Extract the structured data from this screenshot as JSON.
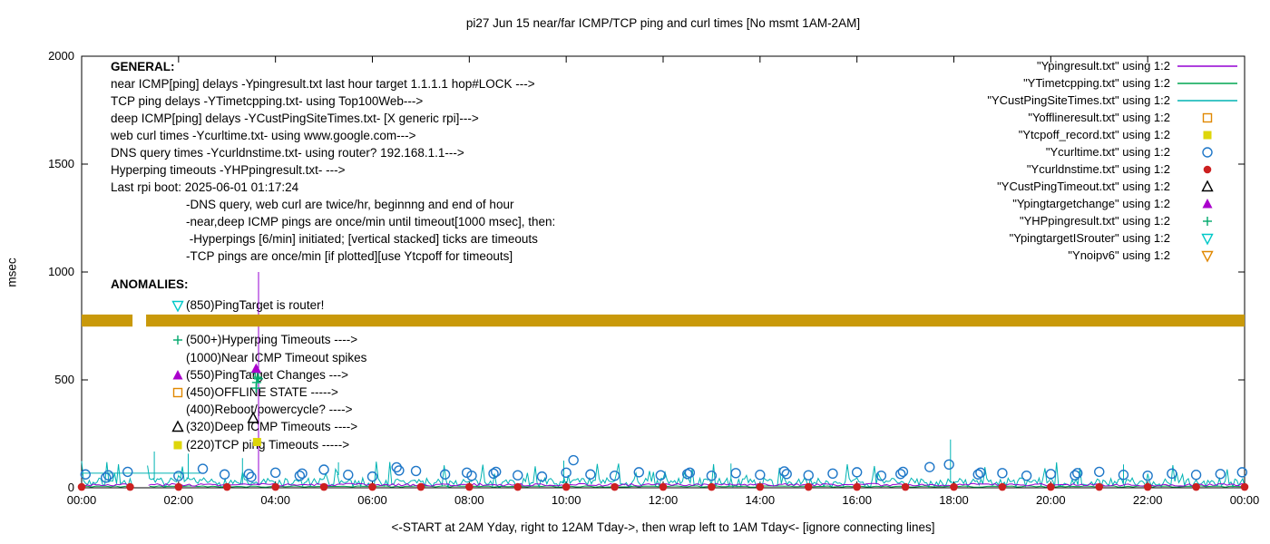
{
  "title": "pi27 Jun 15  near/far ICMP/TCP ping and curl times [No msmt 1AM-2AM]",
  "axes": {
    "ylabel": "msec",
    "xlabel": "<-START at 2AM Yday, right to 12AM Tday->, then wrap left to 1AM Tday<- [ignore connecting lines]"
  },
  "general": {
    "heading": "GENERAL:",
    "lines": [
      {
        "text": "near ICMP[ping] delays -Ypingresult.txt last hour target 1.1.1.1 hop#LOCK --->",
        "indent": 0
      },
      {
        "text": "TCP ping delays -YTimetcpping.txt- using Top100Web--->",
        "indent": 0
      },
      {
        "text": "deep ICMP[ping] delays -YCustPingSiteTimes.txt- [X generic rpi]--->",
        "indent": 0
      },
      {
        "text": "web curl times -Ycurltime.txt- using www.google.com--->",
        "indent": 0
      },
      {
        "text": "DNS query times -Ycurldnstime.txt- using router? 192.168.1.1--->",
        "indent": 0
      },
      {
        "text": "Hyperping timeouts -YHPpingresult.txt- --->",
        "indent": 0
      },
      {
        "text": "Last rpi boot: 2025-06-01 01:17:24",
        "indent": 0
      },
      {
        "text": "-DNS query, web curl are twice/hr, beginnng and end of hour",
        "indent": 1
      },
      {
        "text": "-near,deep ICMP pings are once/min until timeout[1000 msec], then:",
        "indent": 1
      },
      {
        "text": " -Hyperpings [6/min] initiated; [vertical stacked] ticks are timeouts",
        "indent": 1
      },
      {
        "text": "-TCP pings are once/min [if plotted][use Ytcpoff for timeouts]",
        "indent": 1
      }
    ]
  },
  "anomalies": {
    "heading": "ANOMALIES:",
    "items": [
      {
        "row": 0,
        "marker": "tri-down-open",
        "color": "#00c8c8",
        "text": "(850)PingTarget is router!"
      },
      {
        "row": 2,
        "marker": "plus",
        "color": "#00a86b",
        "text": "(500+)Hyperping Timeouts ---->"
      },
      {
        "row": 3,
        "marker": "",
        "color": "",
        "text": "(1000)Near ICMP Timeout spikes"
      },
      {
        "row": 4,
        "marker": "tri-up-filled",
        "color": "#aa00cc",
        "text": "(550)PingTarget Changes --->"
      },
      {
        "row": 5,
        "marker": "square-open",
        "color": "#e08800",
        "text": "(450)OFFLINE STATE ----->"
      },
      {
        "row": 6,
        "marker": "",
        "color": "",
        "text": "(400)Reboot/powercycle? ---->"
      },
      {
        "row": 7,
        "marker": "tri-up-open",
        "color": "#000000",
        "text": "(320)Deep ICMP Timeouts ---->"
      },
      {
        "row": 8,
        "marker": "square-filled",
        "color": "#ded60a",
        "text": "(220)TCP ping Timeouts ----->"
      }
    ]
  },
  "legend": {
    "items": [
      {
        "label": "\"Ypingresult.txt\" using 1:2",
        "glyph": "line",
        "color": "#9400d3"
      },
      {
        "label": "\"YTimetcpping.txt\" using 1:2",
        "glyph": "line",
        "color": "#00a550"
      },
      {
        "label": "\"YCustPingSiteTimes.txt\" using 1:2",
        "glyph": "line",
        "color": "#00b3b3"
      },
      {
        "label": "\"Yofflineresult.txt\" using 1:2",
        "glyph": "square-open",
        "color": "#e08800"
      },
      {
        "label": "\"Ytcpoff_record.txt\" using 1:2",
        "glyph": "square-filled",
        "color": "#ded60a"
      },
      {
        "label": "\"Ycurltime.txt\" using 1:2",
        "glyph": "circle-open",
        "color": "#1f77c8"
      },
      {
        "label": "\"Ycurldnstime.txt\" using 1:2",
        "glyph": "circle-filled",
        "color": "#cc2020"
      },
      {
        "label": "\"YCustPingTimeout.txt\" using 1:2",
        "glyph": "tri-up-open",
        "color": "#000000"
      },
      {
        "label": "\"Ypingtargetchange\" using 1:2",
        "glyph": "tri-up-filled",
        "color": "#aa00cc"
      },
      {
        "label": "\"YHPpingresult.txt\" using 1:2",
        "glyph": "plus",
        "color": "#00a86b"
      },
      {
        "label": "\"YpingtargetISrouter\" using 1:2",
        "glyph": "tri-down-open",
        "color": "#00c8c8"
      },
      {
        "label": "\"Ynoipv6\" using 1:2",
        "glyph": "tri-down-open",
        "color": "#e08800"
      }
    ]
  },
  "chart_data": {
    "type": "line",
    "title": "pi27 Jun 15  near/far ICMP/TCP ping and curl times [No msmt 1AM-2AM]",
    "xlabel": "<-START at 2AM Yday, right to 12AM Tday->, then wrap left to 1AM Tday<- [ignore connecting lines]",
    "ylabel": "msec",
    "ylim": [
      0,
      2000
    ],
    "xlim_hours": [
      0,
      24
    ],
    "grid": false,
    "legend_position": "top-right-outside-style",
    "x_ticks": [
      {
        "h": 0,
        "label": "00:00"
      },
      {
        "h": 2,
        "label": "02:00"
      },
      {
        "h": 4,
        "label": "04:00"
      },
      {
        "h": 6,
        "label": "06:00"
      },
      {
        "h": 8,
        "label": "08:00"
      },
      {
        "h": 10,
        "label": "10:00"
      },
      {
        "h": 12,
        "label": "12:00"
      },
      {
        "h": 14,
        "label": "14:00"
      },
      {
        "h": 16,
        "label": "16:00"
      },
      {
        "h": 18,
        "label": "18:00"
      },
      {
        "h": 20,
        "label": "20:00"
      },
      {
        "h": 22,
        "label": "22:00"
      },
      {
        "h": 24,
        "label": "00:00"
      }
    ],
    "y_ticks": [
      {
        "m": 0,
        "label": "0"
      },
      {
        "m": 500,
        "label": "500"
      },
      {
        "m": 1000,
        "label": "1000"
      },
      {
        "m": 1500,
        "label": "1500"
      },
      {
        "m": 2000,
        "label": "2000"
      }
    ],
    "no_measurement_gap_hours": [
      1.05,
      1.33
    ],
    "series": [
      {
        "id": "custpingsitetimes",
        "name": "YCustPingSiteTimes",
        "type": "noisy",
        "color": "#00b3b3",
        "step_h": 0.04,
        "base_min": 4,
        "base_max": 46,
        "spike_prob": 0.1,
        "spike_min": 55,
        "spike_max": 125,
        "seed": 7,
        "gap": [
          1.05,
          1.33
        ],
        "big_spikes": [
          [
            1.5,
            168
          ],
          [
            2.2,
            158
          ],
          [
            3.32,
            138
          ],
          [
            5.3,
            118
          ],
          [
            9.95,
            126
          ],
          [
            13.4,
            112
          ],
          [
            17.93,
            224
          ],
          [
            21.5,
            108
          ]
        ],
        "flat_segments": [
          [
            0,
            2.45,
            68
          ]
        ]
      },
      {
        "id": "timetcpping",
        "name": "YTimetcpping",
        "type": "noisy",
        "color": "#00a550",
        "step_h": 0.1,
        "base_min": 3,
        "base_max": 9,
        "spike_prob": 0,
        "spike_min": 0,
        "spike_max": 0,
        "seed": 9,
        "gap": [
          1.05,
          1.33
        ],
        "big_spikes": [],
        "flat_segments": []
      },
      {
        "id": "pingresult",
        "name": "Ypingresult",
        "type": "noisy",
        "color": "#9400d3",
        "step_h": 0.06,
        "base_min": 8,
        "base_max": 20,
        "spike_prob": 0,
        "spike_min": 0,
        "spike_max": 0,
        "seed": 3,
        "gap": [
          1.05,
          1.33
        ],
        "big_spikes": [
          [
            3.65,
            1000
          ]
        ],
        "flat_segments": []
      },
      {
        "id": "noipv6",
        "name": "Ynoipv6",
        "type": "band",
        "color": "#c9990a",
        "msec": 775,
        "half_msec": 28,
        "segments": [
          [
            0,
            1.05
          ],
          [
            1.33,
            24
          ]
        ]
      },
      {
        "id": "curltime",
        "name": "Ycurltime",
        "type": "scatter",
        "marker": "circle-open",
        "color": "#1f77c8",
        "points": [
          [
            0.08,
            62
          ],
          [
            0.5,
            47
          ],
          [
            0.55,
            58
          ],
          [
            0.95,
            74
          ],
          [
            2.0,
            55
          ],
          [
            2.5,
            88
          ],
          [
            2.95,
            62
          ],
          [
            3.45,
            64
          ],
          [
            3.5,
            50
          ],
          [
            4.0,
            70
          ],
          [
            4.5,
            56
          ],
          [
            4.55,
            66
          ],
          [
            5.0,
            84
          ],
          [
            5.5,
            60
          ],
          [
            6.0,
            52
          ],
          [
            6.5,
            95
          ],
          [
            6.55,
            80
          ],
          [
            6.9,
            78
          ],
          [
            7.5,
            62
          ],
          [
            7.95,
            70
          ],
          [
            8.05,
            56
          ],
          [
            8.5,
            66
          ],
          [
            8.55,
            74
          ],
          [
            9.0,
            58
          ],
          [
            9.5,
            52
          ],
          [
            10.0,
            70
          ],
          [
            10.15,
            128
          ],
          [
            10.5,
            62
          ],
          [
            11.0,
            56
          ],
          [
            11.5,
            72
          ],
          [
            11.95,
            58
          ],
          [
            12.5,
            64
          ],
          [
            12.55,
            70
          ],
          [
            13.0,
            56
          ],
          [
            13.5,
            68
          ],
          [
            14.0,
            60
          ],
          [
            14.5,
            76
          ],
          [
            14.55,
            64
          ],
          [
            15.0,
            58
          ],
          [
            15.5,
            66
          ],
          [
            16.0,
            72
          ],
          [
            16.5,
            56
          ],
          [
            16.9,
            64
          ],
          [
            16.95,
            74
          ],
          [
            17.5,
            96
          ],
          [
            17.9,
            108
          ],
          [
            18.5,
            62
          ],
          [
            18.55,
            70
          ],
          [
            19.0,
            68
          ],
          [
            19.5,
            56
          ],
          [
            20.0,
            64
          ],
          [
            20.5,
            58
          ],
          [
            20.55,
            68
          ],
          [
            21.0,
            74
          ],
          [
            21.5,
            60
          ],
          [
            22.0,
            56
          ],
          [
            22.5,
            66
          ],
          [
            23.0,
            60
          ],
          [
            23.5,
            64
          ],
          [
            23.95,
            72
          ]
        ]
      },
      {
        "id": "curldnstime",
        "name": "Ycurldnstime",
        "type": "scatter",
        "marker": "circle-filled",
        "color": "#cc2020",
        "points": [
          [
            0,
            4
          ],
          [
            1,
            4
          ],
          [
            2,
            4
          ],
          [
            3,
            4
          ],
          [
            4,
            4
          ],
          [
            5,
            4
          ],
          [
            6,
            4
          ],
          [
            7,
            4
          ],
          [
            8,
            4
          ],
          [
            9,
            4
          ],
          [
            10,
            4
          ],
          [
            11,
            4
          ],
          [
            12,
            4
          ],
          [
            13,
            4
          ],
          [
            14,
            4
          ],
          [
            15,
            4
          ],
          [
            16,
            4
          ],
          [
            17,
            4
          ],
          [
            18,
            4
          ],
          [
            19,
            4
          ],
          [
            20,
            4
          ],
          [
            21,
            4
          ],
          [
            22,
            4
          ],
          [
            23,
            4
          ],
          [
            24,
            4
          ]
        ]
      },
      {
        "id": "hppingresult",
        "name": "YHPpingresult",
        "type": "scatter",
        "marker": "plus",
        "color": "#00a86b",
        "points": [
          [
            3.6,
            462
          ],
          [
            3.61,
            488
          ],
          [
            3.63,
            512
          ],
          [
            3.58,
            535
          ],
          [
            3.65,
            505
          ]
        ]
      },
      {
        "id": "pingtargetchange",
        "name": "Ypingtargetchange",
        "type": "scatter",
        "marker": "tri-up-filled",
        "color": "#aa00cc",
        "points": [
          [
            3.6,
            552
          ]
        ]
      },
      {
        "id": "custpingtimeout",
        "name": "YCustPingTimeout",
        "type": "scatter",
        "marker": "tri-up-open",
        "color": "#000000",
        "points": [
          [
            3.54,
            322
          ]
        ]
      },
      {
        "id": "tcpoff_record",
        "name": "Ytcpoff_record",
        "type": "scatter",
        "marker": "square-filled",
        "color": "#ded60a",
        "points": [
          [
            3.62,
            212
          ]
        ]
      }
    ]
  }
}
